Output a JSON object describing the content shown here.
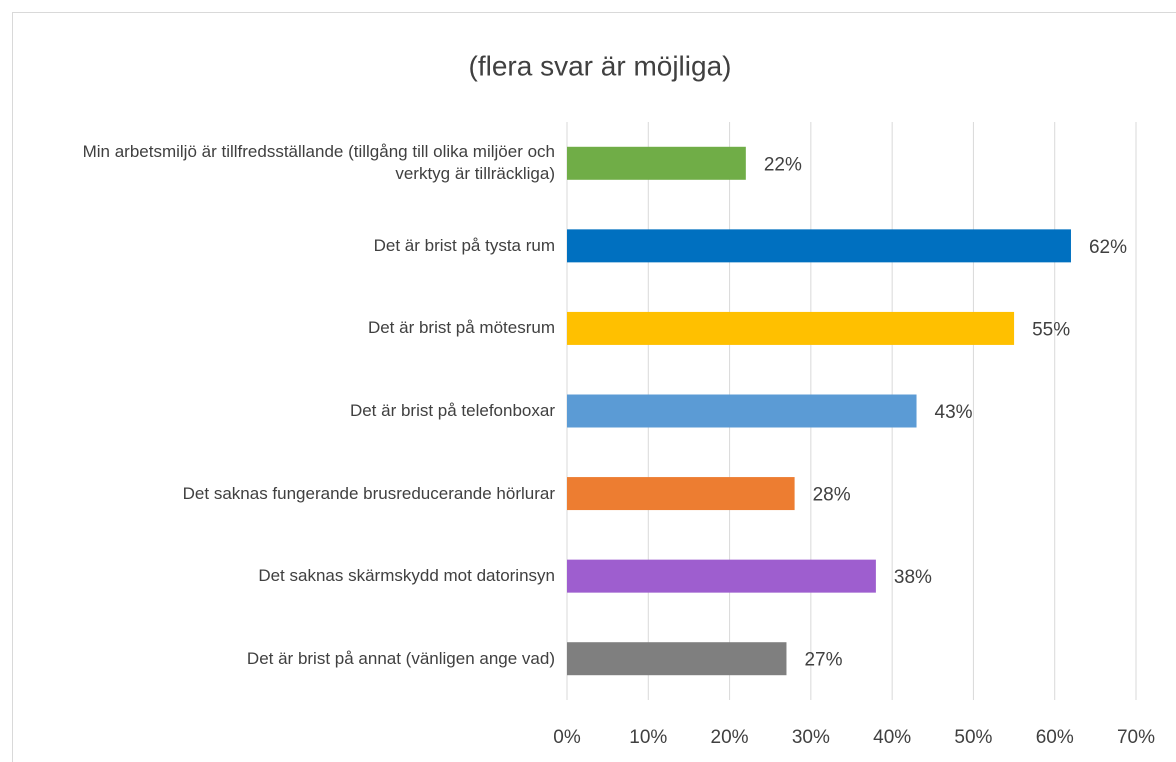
{
  "chart_data": {
    "type": "bar",
    "orientation": "horizontal",
    "title": "(flera svar är möjliga)",
    "categories": [
      "Min arbetsmiljö är tillfredsställande (tillgång till olika miljöer och verktyg är tillräckliga)",
      "Det är brist på tysta rum",
      "Det är brist på mötesrum",
      "Det är brist på telefonboxar",
      "Det saknas fungerande brusreducerande hörlurar",
      "Det saknas skärmskydd mot datorinsyn",
      "Det är brist på annat (vänligen ange vad)"
    ],
    "values": [
      22,
      62,
      55,
      43,
      28,
      38,
      27
    ],
    "value_labels": [
      "22%",
      "62%",
      "55%",
      "43%",
      "28%",
      "38%",
      "27%"
    ],
    "colors": [
      "#70ad47",
      "#0070c0",
      "#ffc000",
      "#5b9bd5",
      "#ed7d31",
      "#9e5ecf",
      "#7f7f7f"
    ],
    "xlim": [
      0,
      70
    ],
    "xticks": [
      {
        "value": 0,
        "label": "0%"
      },
      {
        "value": 10,
        "label": "10%"
      },
      {
        "value": 20,
        "label": "20%"
      },
      {
        "value": 30,
        "label": "30%"
      },
      {
        "value": 40,
        "label": "40%"
      },
      {
        "value": 50,
        "label": "50%"
      },
      {
        "value": 60,
        "label": "60%"
      },
      {
        "value": 70,
        "label": "70%"
      }
    ],
    "grid": true
  }
}
